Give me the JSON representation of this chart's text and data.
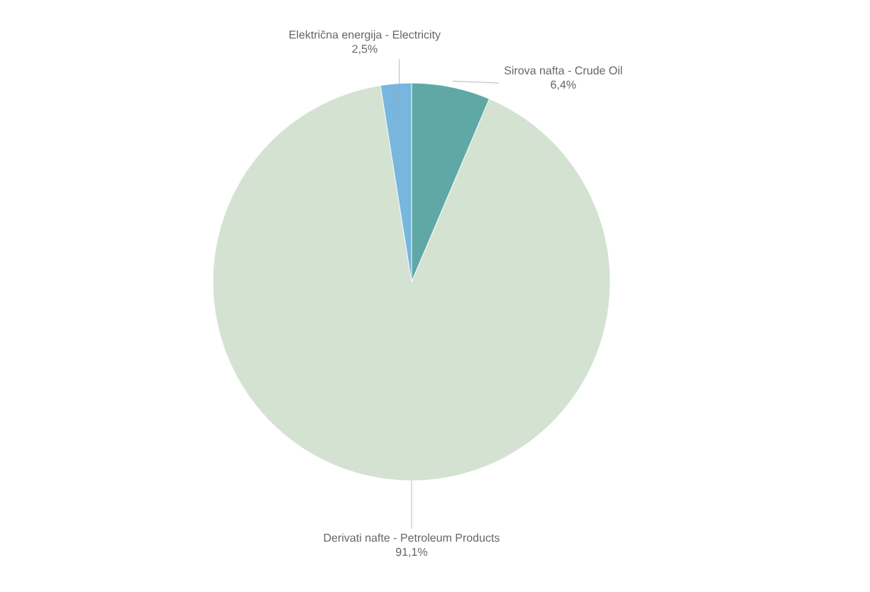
{
  "chart_data": {
    "type": "pie",
    "categories": [
      "Sirova nafta - Crude Oil",
      "Derivati nafte - Petroleum Products",
      "Električna energija - Electricity"
    ],
    "values": [
      6.4,
      91.1,
      2.5
    ],
    "value_labels": [
      "6,4%",
      "91,1%",
      "2,5%"
    ],
    "colors": [
      "#5fa8a6",
      "#d3e2d1",
      "#78b6de"
    ]
  }
}
